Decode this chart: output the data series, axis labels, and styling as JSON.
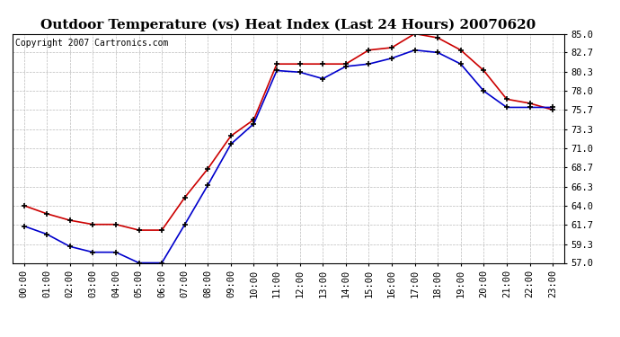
{
  "title": "Outdoor Temperature (vs) Heat Index (Last 24 Hours) 20070620",
  "copyright": "Copyright 2007 Cartronics.com",
  "x_labels": [
    "00:00",
    "01:00",
    "02:00",
    "03:00",
    "04:00",
    "05:00",
    "06:00",
    "07:00",
    "08:00",
    "09:00",
    "10:00",
    "11:00",
    "12:00",
    "13:00",
    "14:00",
    "15:00",
    "16:00",
    "17:00",
    "18:00",
    "19:00",
    "20:00",
    "21:00",
    "22:00",
    "23:00"
  ],
  "y_ticks": [
    57.0,
    59.3,
    61.7,
    64.0,
    66.3,
    68.7,
    71.0,
    73.3,
    75.7,
    78.0,
    80.3,
    82.7,
    85.0
  ],
  "ylim": [
    57.0,
    85.0
  ],
  "heat_index": [
    64.0,
    63.0,
    62.2,
    61.7,
    61.7,
    61.0,
    61.0,
    65.0,
    68.5,
    72.5,
    74.5,
    81.3,
    81.3,
    81.3,
    81.3,
    83.0,
    83.3,
    85.0,
    84.5,
    83.0,
    80.5,
    77.0,
    76.5,
    75.7
  ],
  "outdoor_temp": [
    61.5,
    60.5,
    59.0,
    58.3,
    58.3,
    57.0,
    57.0,
    61.7,
    66.5,
    71.5,
    74.0,
    80.5,
    80.3,
    79.5,
    81.0,
    81.3,
    82.0,
    83.0,
    82.7,
    81.3,
    78.0,
    76.0,
    76.0,
    76.0
  ],
  "heat_index_color": "#cc0000",
  "outdoor_temp_color": "#0000cc",
  "bg_color": "#ffffff",
  "plot_bg_color": "#ffffff",
  "grid_color": "#bbbbbb",
  "title_fontsize": 11,
  "copyright_fontsize": 7,
  "tick_fontsize": 7.5
}
